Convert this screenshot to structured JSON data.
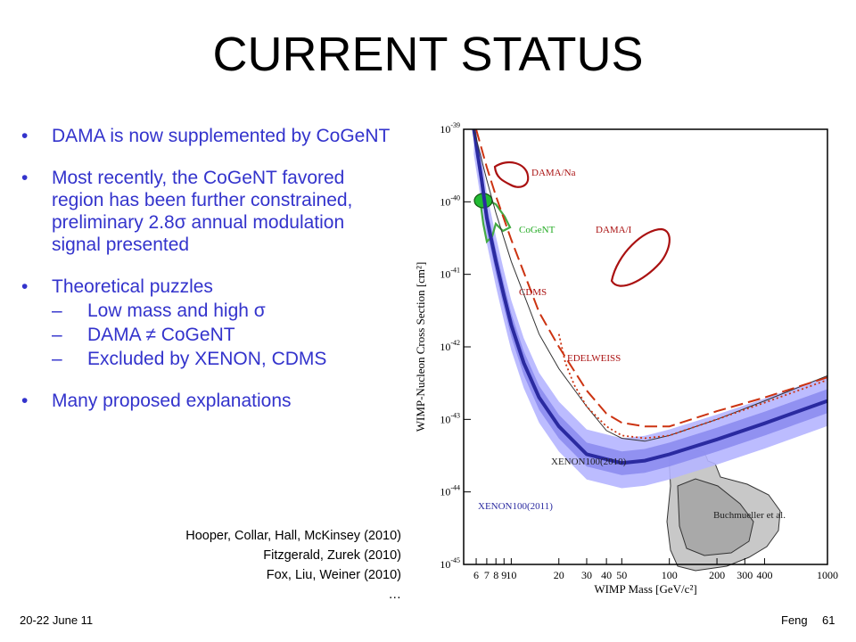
{
  "slide": {
    "title": "CURRENT STATUS",
    "bullets": [
      {
        "text": "DAMA is now supplemented by CoGeNT",
        "subs": []
      },
      {
        "text": "Most recently, the CoGeNT favored region has been further constrained, preliminary 2.8σ annual modulation signal presented",
        "subs": []
      },
      {
        "text": "Theoretical puzzles",
        "subs": [
          "Low mass and high σ",
          "DAMA ≠ CoGeNT",
          "Excluded by XENON, CDMS"
        ]
      },
      {
        "text": "Many proposed explanations",
        "subs": []
      }
    ],
    "references": [
      "Hooper, Collar, Hall, McKinsey (2010)",
      "Fitzgerald, Zurek (2010)",
      "Fox, Liu, Weiner (2010)",
      "…"
    ],
    "footer": {
      "date": "20-22 June 11",
      "author": "Feng",
      "page": "61"
    },
    "colors": {
      "text_blue": "#3333cc",
      "xenon2011": "#2a2aa0",
      "xenon_band": "#aaaaff",
      "cdms": "#cc2200",
      "dama": "#aa1111",
      "cogent": "#22aa22"
    }
  },
  "chart_data": {
    "type": "line",
    "xscale": "log",
    "yscale": "log",
    "xlabel": "WIMP Mass [GeV/c²]",
    "ylabel": "WIMP-Nucleon Cross Section [cm²]",
    "xlim": [
      5,
      1000
    ],
    "ylim": [
      1e-45,
      1e-39
    ],
    "xticks": [
      6,
      7,
      8,
      9,
      10,
      20,
      30,
      40,
      50,
      100,
      200,
      300,
      400,
      1000
    ],
    "xtick_labels": [
      "6",
      "7",
      "8",
      "9",
      "10",
      "20",
      "30",
      "40",
      "50",
      "100",
      "200",
      "300",
      "400",
      "1000"
    ],
    "yticks": [
      1e-45,
      1e-44,
      1e-43,
      1e-42,
      1e-41,
      1e-40,
      1e-39
    ],
    "ytick_exponents": [
      "-45",
      "-44",
      "-43",
      "-42",
      "-41",
      "-40",
      "-39"
    ],
    "ytick_base": "10",
    "series": [
      {
        "name": "XENON100(2011)",
        "style": "thick",
        "x": [
          5.8,
          6.5,
          7,
          8,
          9,
          10,
          12,
          15,
          20,
          30,
          50,
          70,
          100,
          200,
          400,
          1000
        ],
        "y": [
          1e-39,
          2e-40,
          6e-41,
          1.5e-41,
          5e-42,
          2e-42,
          6e-43,
          2e-43,
          8e-44,
          3.3e-44,
          2.5e-44,
          2.7e-44,
          3.3e-44,
          5.3e-44,
          8.8e-44,
          1.8e-43
        ]
      },
      {
        "name": "XENON100(2010)",
        "style": "thin",
        "x": [
          5.8,
          7,
          8,
          10,
          15,
          20,
          30,
          40,
          50,
          70,
          100,
          200,
          400,
          1000
        ],
        "y": [
          1e-39,
          2e-40,
          7e-41,
          1.5e-41,
          1.5e-42,
          5e-43,
          1.5e-43,
          7e-44,
          5.5e-44,
          5e-44,
          6e-44,
          1e-43,
          1.8e-43,
          4e-43
        ]
      },
      {
        "name": "CDMS",
        "style": "dashed",
        "x": [
          6,
          7,
          8,
          10,
          15,
          20,
          30,
          40,
          50,
          70,
          100,
          200,
          400,
          1000
        ],
        "y": [
          1e-39,
          3e-40,
          1.2e-40,
          3e-41,
          3e-42,
          1e-42,
          2.5e-43,
          1.2e-43,
          9e-44,
          8e-44,
          8e-44,
          1.3e-43,
          2e-43,
          3.8e-43
        ]
      },
      {
        "name": "EDELWEISS",
        "style": "dotted",
        "x": [
          20,
          22,
          25,
          30,
          40,
          50,
          70,
          100,
          200,
          400,
          1000
        ],
        "y": [
          1.5e-42,
          6e-43,
          3e-43,
          1.5e-43,
          8e-44,
          6e-44,
          5.5e-44,
          6e-44,
          1e-43,
          1.7e-43,
          3.5e-43
        ]
      }
    ],
    "regions": [
      "DAMA/Na",
      "DAMA/I",
      "CoGeNT",
      "Buchmueller et al."
    ]
  }
}
